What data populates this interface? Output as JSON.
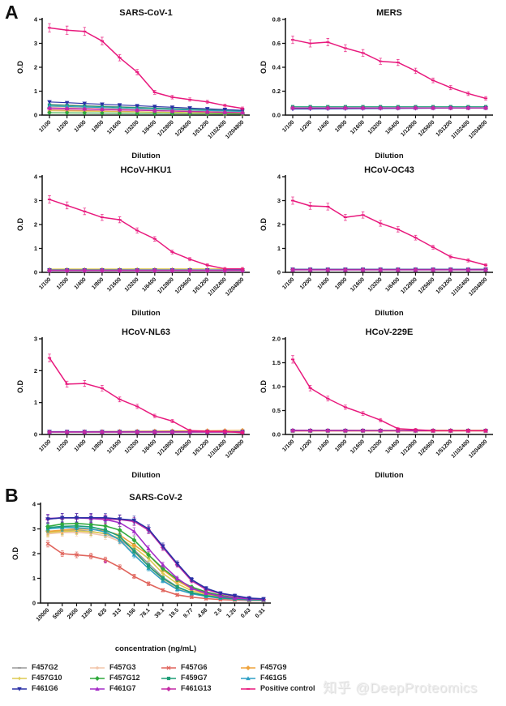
{
  "page": {
    "panel_a_label": "A",
    "panel_b_label": "B",
    "watermark": "知乎 @DeepProteomics"
  },
  "legend": {
    "items": [
      {
        "label": "F457G2",
        "color": "#9a9a9a",
        "marker": "dash"
      },
      {
        "label": "F457G3",
        "color": "#f2c5aa",
        "marker": "circle"
      },
      {
        "label": "F457G6",
        "color": "#e0645c",
        "marker": "cross"
      },
      {
        "label": "F457G9",
        "color": "#efa33c",
        "marker": "diamond"
      },
      {
        "label": "F457G10",
        "color": "#ddca50",
        "marker": "plus"
      },
      {
        "label": "F457G12",
        "color": "#2fa93c",
        "marker": "diamond"
      },
      {
        "label": "F459G7",
        "color": "#1d9d77",
        "marker": "square"
      },
      {
        "label": "F461G5",
        "color": "#2f9fc5",
        "marker": "tri"
      },
      {
        "label": "F461G6",
        "color": "#2a30a6",
        "marker": "tri-down"
      },
      {
        "label": "F461G7",
        "color": "#a42cc7",
        "marker": "tri"
      },
      {
        "label": "F461G13",
        "color": "#c42aa5",
        "marker": "diamond"
      },
      {
        "label": "Positive control",
        "color": "#e8197d",
        "marker": "dash"
      }
    ]
  },
  "chart_data": [
    {
      "type": "line",
      "title": "SARS-CoV-1",
      "xlabel": "Dilution",
      "ylabel": "O.D",
      "ylim": [
        0,
        4
      ],
      "yticks": [
        "0",
        "1",
        "2",
        "3",
        "4"
      ],
      "categories": [
        "1/100",
        "1/200",
        "1/400",
        "1/800",
        "1/1600",
        "1/3200",
        "1/6400",
        "1/12800",
        "1/25600",
        "1/51200",
        "1/102400",
        "1/204800"
      ],
      "series": [
        {
          "name": "F457G2",
          "flat": [
            0.45,
            0.18
          ]
        },
        {
          "name": "F457G3",
          "flat": [
            0.35,
            0.12
          ]
        },
        {
          "name": "F457G6",
          "flat": [
            0.22,
            0.05
          ]
        },
        {
          "name": "F457G9",
          "flat": [
            0.3,
            0.1
          ]
        },
        {
          "name": "F457G10",
          "flat": [
            0.18,
            0.08
          ]
        },
        {
          "name": "F457G12",
          "flat": [
            0.1,
            0.05
          ]
        },
        {
          "name": "F459G7",
          "flat": [
            0.42,
            0.18
          ]
        },
        {
          "name": "F461G5",
          "flat": [
            0.38,
            0.15
          ]
        },
        {
          "name": "F461G6",
          "flat": [
            0.55,
            0.2
          ]
        },
        {
          "name": "F461G7",
          "flat": [
            0.3,
            0.1
          ]
        },
        {
          "name": "F461G13",
          "flat": [
            0.28,
            0.1
          ]
        },
        {
          "name": "Positive control",
          "err": true,
          "values": [
            3.65,
            3.55,
            3.5,
            3.1,
            2.4,
            1.8,
            0.95,
            0.75,
            0.65,
            0.55,
            0.4,
            0.28
          ]
        }
      ]
    },
    {
      "type": "line",
      "title": "MERS",
      "xlabel": "Dilution",
      "ylabel": "O.D",
      "ylim": [
        0,
        0.8
      ],
      "yticks": [
        "0.0",
        "0.2",
        "0.4",
        "0.6",
        "0.8"
      ],
      "categories": [
        "1/100",
        "1/200",
        "1/400",
        "1/800",
        "1/1600",
        "1/3200",
        "1/6400",
        "1/12800",
        "1/25600",
        "1/51200",
        "1/102400",
        "1/204800"
      ],
      "series": [
        {
          "name": "F457G2",
          "flat": [
            0.06,
            0.06
          ]
        },
        {
          "name": "F457G3",
          "flat": [
            0.06,
            0.06
          ]
        },
        {
          "name": "F457G6",
          "flat": [
            0.06,
            0.06
          ]
        },
        {
          "name": "F457G9",
          "flat": [
            0.06,
            0.06
          ]
        },
        {
          "name": "F457G10",
          "flat": [
            0.06,
            0.06
          ]
        },
        {
          "name": "F457G12",
          "flat": [
            0.06,
            0.06
          ]
        },
        {
          "name": "F459G7",
          "flat": [
            0.07,
            0.07
          ]
        },
        {
          "name": "F461G5",
          "flat": [
            0.06,
            0.06
          ]
        },
        {
          "name": "F461G6",
          "flat": [
            0.05,
            0.06
          ]
        },
        {
          "name": "F461G7",
          "flat": [
            0.06,
            0.06
          ]
        },
        {
          "name": "F461G13",
          "flat": [
            0.06,
            0.06
          ]
        },
        {
          "name": "Positive control",
          "err": true,
          "values": [
            0.63,
            0.6,
            0.61,
            0.56,
            0.52,
            0.45,
            0.44,
            0.37,
            0.29,
            0.23,
            0.18,
            0.14
          ]
        }
      ]
    },
    {
      "type": "line",
      "title": "HCoV-HKU1",
      "xlabel": "Dilution",
      "ylabel": "O.D",
      "ylim": [
        0,
        4
      ],
      "yticks": [
        "0",
        "1",
        "2",
        "3",
        "4"
      ],
      "categories": [
        "1/100",
        "1/200",
        "1/400",
        "1/800",
        "1/1600",
        "1/3200",
        "1/6400",
        "1/12800",
        "1/25600",
        "1/51200",
        "1/102400",
        "1/204800"
      ],
      "series": [
        {
          "name": "F457G2",
          "flat": [
            0.08,
            0.08
          ]
        },
        {
          "name": "F457G3",
          "flat": [
            0.1,
            0.09
          ]
        },
        {
          "name": "F457G6",
          "flat": [
            0.07,
            0.07
          ]
        },
        {
          "name": "F457G9",
          "flat": [
            0.1,
            0.1
          ]
        },
        {
          "name": "F457G10",
          "flat": [
            0.14,
            0.15
          ]
        },
        {
          "name": "F457G12",
          "flat": [
            0.09,
            0.08
          ]
        },
        {
          "name": "F459G7",
          "flat": [
            0.1,
            0.09
          ]
        },
        {
          "name": "F461G5",
          "flat": [
            0.08,
            0.08
          ]
        },
        {
          "name": "F461G6",
          "flat": [
            0.1,
            0.1
          ]
        },
        {
          "name": "F461G7",
          "flat": [
            0.07,
            0.07
          ]
        },
        {
          "name": "F461G13",
          "flat": [
            0.08,
            0.08
          ]
        },
        {
          "name": "Positive control",
          "err": true,
          "values": [
            3.05,
            2.8,
            2.55,
            2.3,
            2.2,
            1.75,
            1.4,
            0.85,
            0.55,
            0.3,
            0.15,
            0.15
          ]
        }
      ]
    },
    {
      "type": "line",
      "title": "HCoV-OC43",
      "xlabel": "Dilution",
      "ylabel": "O.D",
      "ylim": [
        0,
        4
      ],
      "yticks": [
        "0",
        "1",
        "2",
        "3",
        "4"
      ],
      "categories": [
        "1/100",
        "1/200",
        "1/400",
        "1/800",
        "1/1600",
        "1/3200",
        "1/6400",
        "1/12800",
        "1/25600",
        "1/51200",
        "1/102400",
        "1/204800"
      ],
      "series": [
        {
          "name": "F457G2",
          "flat": [
            0.11,
            0.11
          ]
        },
        {
          "name": "F457G3",
          "flat": [
            0.12,
            0.12
          ]
        },
        {
          "name": "F457G6",
          "flat": [
            0.1,
            0.1
          ]
        },
        {
          "name": "F457G9",
          "flat": [
            0.12,
            0.12
          ]
        },
        {
          "name": "F457G10",
          "flat": [
            0.12,
            0.12
          ]
        },
        {
          "name": "F457G12",
          "flat": [
            0.11,
            0.11
          ]
        },
        {
          "name": "F459G7",
          "flat": [
            0.12,
            0.12
          ]
        },
        {
          "name": "F461G5",
          "flat": [
            0.11,
            0.11
          ]
        },
        {
          "name": "F461G6",
          "flat": [
            0.13,
            0.13
          ]
        },
        {
          "name": "F461G7",
          "flat": [
            0.1,
            0.1
          ]
        },
        {
          "name": "F461G13",
          "flat": [
            0.11,
            0.11
          ]
        },
        {
          "name": "Positive control",
          "err": true,
          "values": [
            3.0,
            2.78,
            2.75,
            2.3,
            2.4,
            2.05,
            1.8,
            1.45,
            1.05,
            0.65,
            0.5,
            0.3
          ]
        }
      ]
    },
    {
      "type": "line",
      "title": "HCoV-NL63",
      "xlabel": "Dilution",
      "ylabel": "O.D",
      "ylim": [
        0,
        3
      ],
      "yticks": [
        "0",
        "1",
        "2",
        "3"
      ],
      "categories": [
        "1/100",
        "1/200",
        "1/400",
        "1/800",
        "1/1600",
        "1/3200",
        "1/6400",
        "1/12800",
        "1/25600",
        "1/51200",
        "1/102400",
        "1/204800"
      ],
      "series": [
        {
          "name": "F457G2",
          "flat": [
            0.08,
            0.08
          ]
        },
        {
          "name": "F457G3",
          "flat": [
            0.08,
            0.08
          ]
        },
        {
          "name": "F457G6",
          "flat": [
            0.07,
            0.07
          ]
        },
        {
          "name": "F457G9",
          "flat": [
            0.08,
            0.13
          ]
        },
        {
          "name": "F457G10",
          "flat": [
            0.08,
            0.08
          ]
        },
        {
          "name": "F457G12",
          "flat": [
            0.08,
            0.08
          ]
        },
        {
          "name": "F459G7",
          "flat": [
            0.08,
            0.08
          ]
        },
        {
          "name": "F461G5",
          "flat": [
            0.08,
            0.08
          ]
        },
        {
          "name": "F461G6",
          "flat": [
            0.09,
            0.09
          ]
        },
        {
          "name": "F461G7",
          "flat": [
            0.07,
            0.07
          ]
        },
        {
          "name": "F461G13",
          "flat": [
            0.08,
            0.08
          ]
        },
        {
          "name": "Positive control",
          "err": true,
          "values": [
            2.4,
            1.58,
            1.6,
            1.45,
            1.1,
            0.88,
            0.58,
            0.42,
            0.12,
            0.1,
            0.1,
            0.05
          ]
        }
      ]
    },
    {
      "type": "line",
      "title": "HCoV-229E",
      "xlabel": "Dilution",
      "ylabel": "O.D",
      "ylim": [
        0,
        2
      ],
      "yticks": [
        "0.0",
        "0.5",
        "1.0",
        "1.5",
        "2.0"
      ],
      "categories": [
        "1/100",
        "1/200",
        "1/400",
        "1/800",
        "1/1600",
        "1/3200",
        "1/6400",
        "1/12800",
        "1/25600",
        "1/51200",
        "1/102400",
        "1/204800"
      ],
      "series": [
        {
          "name": "F457G2",
          "flat": [
            0.08,
            0.08
          ]
        },
        {
          "name": "F457G3",
          "flat": [
            0.08,
            0.08
          ]
        },
        {
          "name": "F457G6",
          "flat": [
            0.07,
            0.07
          ]
        },
        {
          "name": "F457G9",
          "flat": [
            0.08,
            0.08
          ]
        },
        {
          "name": "F457G10",
          "flat": [
            0.09,
            0.09
          ]
        },
        {
          "name": "F457G12",
          "flat": [
            0.08,
            0.08
          ]
        },
        {
          "name": "F459G7",
          "flat": [
            0.08,
            0.08
          ]
        },
        {
          "name": "F461G5",
          "flat": [
            0.08,
            0.08
          ]
        },
        {
          "name": "F461G6",
          "flat": [
            0.08,
            0.08
          ]
        },
        {
          "name": "F461G7",
          "flat": [
            0.09,
            0.08
          ]
        },
        {
          "name": "F461G13",
          "flat": [
            0.08,
            0.08
          ]
        },
        {
          "name": "Positive control",
          "err": true,
          "values": [
            1.57,
            0.97,
            0.75,
            0.57,
            0.44,
            0.3,
            0.12,
            0.1,
            0.08,
            0.08,
            0.08,
            0.08
          ]
        }
      ]
    },
    {
      "type": "line",
      "title": "SARS-CoV-2",
      "xlabel": "concentration (ng/mL)",
      "ylabel": "O.D",
      "ylim": [
        0,
        4
      ],
      "yticks": [
        "0",
        "1",
        "2",
        "3",
        "4"
      ],
      "error_bars": true,
      "line_width": 1.6,
      "categories": [
        "10000",
        "5000",
        "2500",
        "1250",
        "625",
        "313",
        "156",
        "78.1",
        "39.1",
        "19.5",
        "9.77",
        "4.88",
        "2.5",
        "1.25",
        "0.63",
        "0.31"
      ],
      "annotation": {
        "text": "*",
        "x_index": 4,
        "y": 1.5,
        "color": "#c42aa5"
      },
      "series": [
        {
          "name": "F457G6",
          "values": [
            2.4,
            2.0,
            1.95,
            1.9,
            1.75,
            1.45,
            1.08,
            0.78,
            0.52,
            0.33,
            0.24,
            0.18,
            0.14,
            0.12,
            0.1,
            0.1
          ]
        },
        {
          "name": "F457G3",
          "values": [
            2.8,
            2.85,
            2.86,
            2.82,
            2.72,
            2.5,
            2.05,
            1.5,
            0.95,
            0.6,
            0.4,
            0.28,
            0.2,
            0.15,
            0.12,
            0.11
          ]
        },
        {
          "name": "F457G2",
          "values": [
            2.9,
            2.92,
            2.95,
            2.9,
            2.8,
            2.58,
            2.15,
            1.6,
            1.05,
            0.65,
            0.42,
            0.3,
            0.22,
            0.16,
            0.13,
            0.12
          ]
        },
        {
          "name": "F457G10",
          "values": [
            2.85,
            2.9,
            2.92,
            2.88,
            2.82,
            2.62,
            2.25,
            1.8,
            1.2,
            0.78,
            0.5,
            0.35,
            0.25,
            0.19,
            0.15,
            0.13
          ]
        },
        {
          "name": "F457G9",
          "values": [
            2.9,
            2.95,
            3.0,
            2.98,
            2.92,
            2.75,
            2.35,
            1.95,
            1.35,
            0.9,
            0.58,
            0.38,
            0.27,
            0.2,
            0.16,
            0.14
          ]
        },
        {
          "name": "F461G5",
          "values": [
            3.0,
            3.05,
            3.05,
            3.0,
            2.88,
            2.55,
            1.95,
            1.4,
            0.9,
            0.55,
            0.38,
            0.27,
            0.2,
            0.16,
            0.13,
            0.12
          ]
        },
        {
          "name": "F459G7",
          "values": [
            3.05,
            3.1,
            3.12,
            3.08,
            2.95,
            2.7,
            2.1,
            1.5,
            1.0,
            0.65,
            0.42,
            0.3,
            0.22,
            0.17,
            0.15,
            0.13
          ]
        },
        {
          "name": "F457G12",
          "values": [
            3.1,
            3.2,
            3.22,
            3.18,
            3.12,
            2.95,
            2.55,
            1.95,
            1.4,
            0.95,
            0.65,
            0.45,
            0.32,
            0.22,
            0.17,
            0.15
          ]
        },
        {
          "name": "F461G7",
          "values": [
            3.42,
            3.45,
            3.45,
            3.42,
            3.38,
            3.25,
            2.9,
            2.2,
            1.55,
            1.0,
            0.6,
            0.4,
            0.28,
            0.2,
            0.17,
            0.15
          ]
        },
        {
          "name": "F461G13",
          "values": [
            3.4,
            3.45,
            3.45,
            3.45,
            3.4,
            3.38,
            3.3,
            2.95,
            2.25,
            1.55,
            0.9,
            0.55,
            0.38,
            0.28,
            0.2,
            0.15
          ]
        },
        {
          "name": "F461G6",
          "values": [
            3.4,
            3.45,
            3.45,
            3.45,
            3.45,
            3.4,
            3.35,
            3.0,
            2.3,
            1.6,
            0.95,
            0.6,
            0.4,
            0.3,
            0.2,
            0.17
          ]
        }
      ]
    }
  ]
}
